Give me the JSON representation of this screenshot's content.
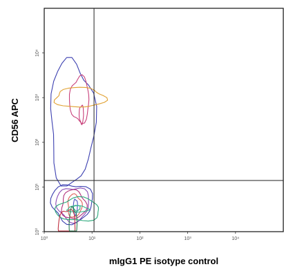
{
  "chart_data": {
    "type": "contour",
    "xlabel": "mIgG1 PE isotype control",
    "ylabel": "CD56 APC",
    "xscale": "log",
    "yscale": "log",
    "xlim": [
      1,
      100000
    ],
    "ylim": [
      1,
      100000
    ],
    "x_ticks": [
      {
        "value": 1,
        "label": "10⁰"
      },
      {
        "value": 10,
        "label": "10¹"
      },
      {
        "value": 100,
        "label": "10²"
      },
      {
        "value": 1000,
        "label": "10³"
      },
      {
        "value": 10000,
        "label": "10⁴"
      }
    ],
    "y_ticks": [
      {
        "value": 1,
        "label": "10⁰"
      },
      {
        "value": 10,
        "label": "10¹"
      },
      {
        "value": 100,
        "label": "10²"
      },
      {
        "value": 1000,
        "label": "10³"
      },
      {
        "value": 10000,
        "label": "10⁴"
      }
    ],
    "quadrant_gate": {
      "x": 11,
      "y": 14
    },
    "populations": [
      {
        "center": [
          0.5,
          0.5
        ],
        "contours": [
          {
            "color": "#3b3fb0",
            "cx": 3.8,
            "cy": 4.4,
            "rx": 2.7,
            "ry": 2.7
          },
          {
            "color": "#8a4bb5",
            "cx": 4.0,
            "cy": 4.2,
            "rx": 2.2,
            "ry": 2.4
          },
          {
            "color": "#b0307a",
            "cx": 4.1,
            "cy": 4.0,
            "rx": 1.8,
            "ry": 2.1
          },
          {
            "color": "#e0605a",
            "cx": 4.3,
            "cy": 3.8,
            "rx": 1.4,
            "ry": 1.8
          },
          {
            "color": "#4a50c0",
            "cx": 4.5,
            "cy": 3.6,
            "rx": 1.1,
            "ry": 1.5
          },
          {
            "color": "#2aa87a",
            "cx": 4.8,
            "cy": 3.4,
            "rx": 0.85,
            "ry": 1.15
          },
          {
            "color": "#30b890",
            "cx": 5.0,
            "cy": 3.2,
            "rx": 0.6,
            "ry": 0.85
          },
          {
            "color": "#2aa87a",
            "cx": 5.1,
            "cy": 3.1,
            "rx": 0.35,
            "ry": 0.55
          },
          {
            "color": "#c03040",
            "cx": 3.0,
            "cy": 1.15,
            "rx": 1.5,
            "ry": 0.35
          },
          {
            "color": "#2a7a50",
            "cx": 4.0,
            "cy": 1.1,
            "rx": 1.2,
            "ry": 0.3
          }
        ]
      },
      {
        "contours": [
          {
            "color": "#3b3fb0",
            "cx": 3.8,
            "cy": 280,
            "rx": 2.9,
            "ry": 25
          },
          {
            "color": "#c8407a",
            "cx": 5.5,
            "cy": 900,
            "rx": 1.6,
            "ry": 3.2
          },
          {
            "color": "#c8407a",
            "cx": 6.0,
            "cy": 420,
            "rx": 0.9,
            "ry": 1.6
          },
          {
            "color": "#e0a030",
            "cx": 5.5,
            "cy": 1000,
            "rx": 0.3,
            "ry": 0.6
          }
        ]
      }
    ]
  }
}
